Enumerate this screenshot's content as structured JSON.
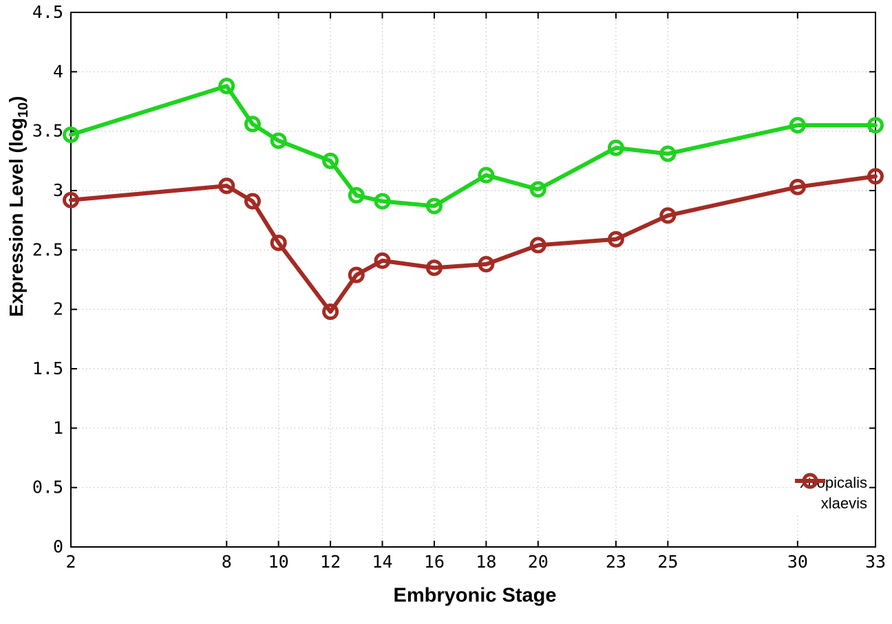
{
  "chart_data": {
    "type": "line",
    "title": "",
    "xlabel": "Embryonic Stage",
    "ylabel": "Expression Level (log10)",
    "ylabel_parts": {
      "prefix": "Expression Level (log",
      "sub": "10",
      "suffix": ")"
    },
    "xlim": [
      2,
      33
    ],
    "ylim": [
      0,
      4.5
    ],
    "grid": true,
    "grid_style": "dotted",
    "legend_position": "inside-bottom-right",
    "x": [
      2,
      8,
      9,
      10,
      12,
      13,
      14,
      16,
      18,
      20,
      23,
      25,
      30,
      33
    ],
    "xticks": [
      2,
      8,
      10,
      12,
      14,
      16,
      18,
      20,
      23,
      25,
      30,
      33
    ],
    "yticks": [
      0,
      0.5,
      1,
      1.5,
      2,
      2.5,
      3,
      3.5,
      4,
      4.5
    ],
    "ytick_labels": [
      "0",
      "0.5",
      "1",
      "1.5",
      "2",
      "2.5",
      "3",
      "3.5",
      "4",
      "4.5"
    ],
    "series": [
      {
        "name": "xtropicalis",
        "color": "#1fd31f",
        "values": [
          3.47,
          3.88,
          3.56,
          3.42,
          3.25,
          2.96,
          2.91,
          2.87,
          3.13,
          3.01,
          3.36,
          3.31,
          3.55,
          3.55
        ]
      },
      {
        "name": "xlaevis",
        "color": "#a42b24",
        "values": [
          2.92,
          3.04,
          2.91,
          2.56,
          1.98,
          2.29,
          2.41,
          2.35,
          2.38,
          2.54,
          2.59,
          2.79,
          3.03,
          3.12
        ]
      }
    ],
    "colors": {
      "axis": "#000000",
      "grid": "#b7c0d2",
      "background": "#ffffff"
    }
  }
}
